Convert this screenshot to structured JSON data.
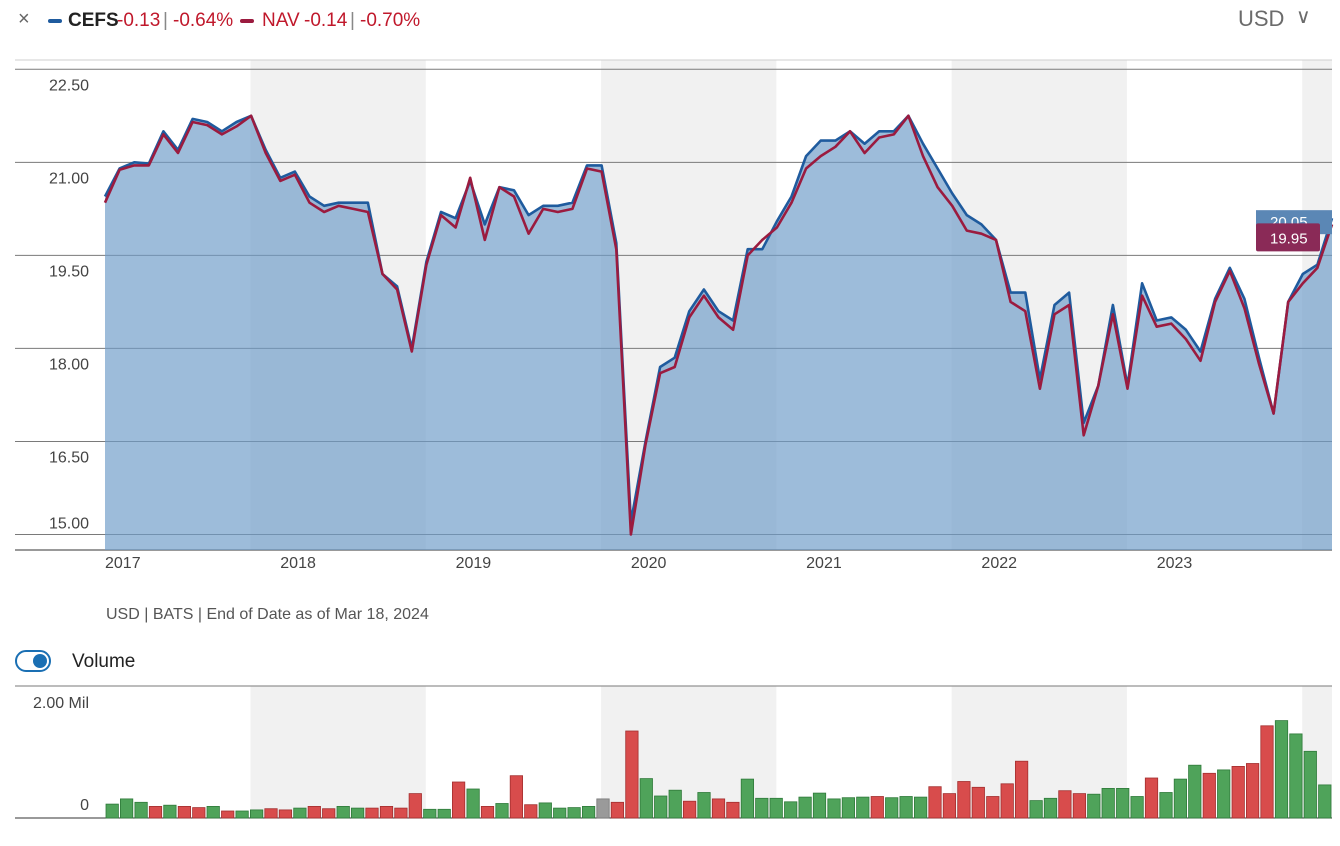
{
  "legend": {
    "close_icon": "close-icon",
    "items": [
      {
        "ticker": "CEFS",
        "change": "-0.13",
        "change_pct": "-0.64%",
        "color": "#1f5b9e"
      },
      {
        "ticker": "NAV",
        "change": "-0.14",
        "change_pct": "-0.70%",
        "color": "#9b1b3f"
      }
    ],
    "separator": "|",
    "negative_color": "#c0182b"
  },
  "currency_selector": {
    "value": "USD",
    "icon": "chevron-down-icon"
  },
  "source_note": "USD | BATS | End of Date as of Mar 18, 2024",
  "volume_toggle": {
    "label": "Volume",
    "checked": true
  },
  "chart_data": [
    {
      "type": "line",
      "y_tick_labels": [
        "22.50",
        "21.00",
        "19.50",
        "18.00",
        "16.50",
        "15.00"
      ],
      "y_ticks": [
        22.5,
        21.0,
        19.5,
        18.0,
        16.5,
        15.0
      ],
      "ylim": [
        14.75,
        22.65
      ],
      "xlim": [
        2017.0,
        2024.0
      ],
      "x_tick_labels": [
        "2017",
        "2018",
        "2019",
        "2020",
        "2021",
        "2022",
        "2023"
      ],
      "x_ticks": [
        2017,
        2018,
        2019,
        2020,
        2021,
        2022,
        2023
      ],
      "grid": true,
      "series": [
        {
          "name": "CEFS",
          "color": "#1f5b9e",
          "values": [
            20.45,
            20.9,
            21.0,
            20.98,
            21.5,
            21.2,
            21.7,
            21.65,
            21.5,
            21.65,
            21.75,
            21.2,
            20.75,
            20.85,
            20.45,
            20.3,
            20.35,
            20.35,
            20.35,
            19.2,
            19.0,
            18.0,
            19.4,
            20.2,
            20.1,
            20.7,
            20.0,
            20.6,
            20.55,
            20.15,
            20.3,
            20.3,
            20.35,
            20.95,
            20.95,
            19.7,
            15.2,
            16.5,
            17.7,
            17.85,
            18.6,
            18.95,
            18.6,
            18.45,
            19.6,
            19.6,
            20.05,
            20.45,
            21.1,
            21.35,
            21.35,
            21.5,
            21.3,
            21.5,
            21.5,
            21.75,
            21.3,
            20.9,
            20.5,
            20.15,
            20.0,
            19.75,
            18.9,
            18.9,
            17.5,
            18.7,
            18.9,
            16.8,
            17.4,
            18.7,
            17.4,
            19.05,
            18.45,
            18.5,
            18.3,
            17.95,
            18.8,
            19.3,
            18.8,
            17.85,
            16.95,
            18.75,
            19.2,
            19.35,
            20.1
          ],
          "last_label": "20.05"
        },
        {
          "name": "NAV",
          "color": "#9b1b3f",
          "values": [
            20.35,
            20.88,
            20.95,
            20.95,
            21.45,
            21.15,
            21.65,
            21.6,
            21.45,
            21.58,
            21.75,
            21.15,
            20.7,
            20.8,
            20.35,
            20.2,
            20.3,
            20.25,
            20.2,
            19.2,
            18.95,
            17.95,
            19.35,
            20.15,
            19.95,
            20.75,
            19.75,
            20.6,
            20.45,
            19.85,
            20.25,
            20.2,
            20.25,
            20.9,
            20.85,
            19.6,
            15.0,
            16.45,
            17.6,
            17.7,
            18.5,
            18.85,
            18.5,
            18.3,
            19.5,
            19.75,
            19.95,
            20.35,
            20.9,
            21.1,
            21.25,
            21.5,
            21.15,
            21.4,
            21.45,
            21.75,
            21.1,
            20.6,
            20.3,
            19.9,
            19.85,
            19.75,
            18.75,
            18.6,
            17.35,
            18.55,
            18.7,
            16.6,
            17.4,
            18.55,
            17.35,
            18.85,
            18.35,
            18.4,
            18.15,
            17.8,
            18.75,
            19.25,
            18.65,
            17.75,
            16.95,
            18.75,
            19.05,
            19.3,
            20.0
          ],
          "last_label": "19.95"
        }
      ]
    },
    {
      "type": "bar",
      "title": "Volume",
      "y_tick_labels": [
        "2.00 Mil",
        "0"
      ],
      "y_ticks": [
        2000000,
        0
      ],
      "ylim": [
        0,
        2000000
      ],
      "up_color": "#4fa35a",
      "down_color": "#d84c4c",
      "flat_color": "#9a9a9a",
      "volumes_mil": [
        0.24,
        0.33,
        0.27,
        0.2,
        0.22,
        0.2,
        0.18,
        0.2,
        0.12,
        0.12,
        0.14,
        0.16,
        0.14,
        0.17,
        0.2,
        0.16,
        0.2,
        0.17,
        0.17,
        0.2,
        0.17,
        0.42,
        0.15,
        0.15,
        0.62,
        0.5,
        0.2,
        0.25,
        0.73,
        0.23,
        0.26,
        0.17,
        0.18,
        0.2,
        0.33,
        0.27,
        1.5,
        0.68,
        0.38,
        0.48,
        0.29,
        0.44,
        0.33,
        0.27,
        0.67,
        0.34,
        0.34,
        0.28,
        0.36,
        0.43,
        0.33,
        0.35,
        0.36,
        0.37,
        0.35,
        0.37,
        0.36,
        0.54,
        0.42,
        0.63,
        0.53,
        0.37,
        0.59,
        0.98,
        0.3,
        0.34,
        0.47,
        0.42,
        0.41,
        0.51,
        0.51,
        0.37,
        0.69,
        0.44,
        0.67,
        0.91,
        0.77,
        0.83,
        0.89,
        0.94,
        1.59,
        1.68,
        1.45,
        1.15,
        0.57
      ],
      "directions": [
        "up",
        "up",
        "up",
        "down",
        "up",
        "down",
        "down",
        "up",
        "down",
        "up",
        "up",
        "down",
        "down",
        "up",
        "down",
        "down",
        "up",
        "up",
        "down",
        "down",
        "down",
        "down",
        "up",
        "up",
        "down",
        "up",
        "down",
        "up",
        "down",
        "down",
        "up",
        "up",
        "up",
        "up",
        "flat",
        "down",
        "down",
        "up",
        "up",
        "up",
        "down",
        "up",
        "down",
        "down",
        "up",
        "up",
        "up",
        "up",
        "up",
        "up",
        "up",
        "up",
        "up",
        "down",
        "up",
        "up",
        "up",
        "down",
        "down",
        "down",
        "down",
        "down",
        "down",
        "down",
        "up",
        "up",
        "down",
        "down",
        "up",
        "up",
        "up",
        "up",
        "down",
        "up",
        "up",
        "up",
        "down",
        "up",
        "down",
        "down",
        "down",
        "up",
        "up",
        "up",
        "up"
      ],
      "x_tick_labels": [],
      "grid": true
    }
  ]
}
